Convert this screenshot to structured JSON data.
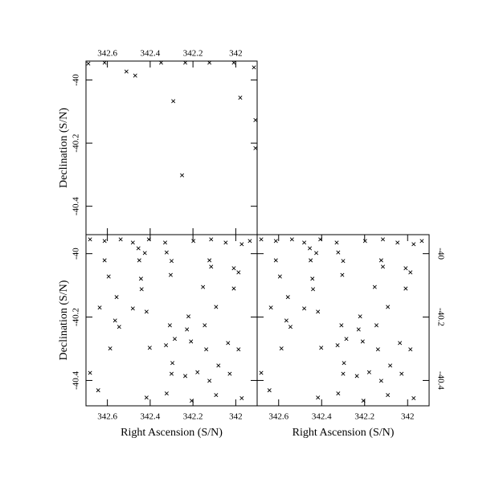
{
  "chart_data": [
    {
      "type": "scatter",
      "marker": "x",
      "color": "#000000",
      "ylabel": "Declination (S/N)",
      "x_tick_side": "top",
      "y_tick_side": "left",
      "xlim": [
        342.7,
        341.9
      ],
      "ylim": [
        -40.49,
        -39.94
      ],
      "xticks": [
        342.6,
        342.4,
        342.2,
        342
      ],
      "yticks": [
        -40.4,
        -40.2,
        -40
      ],
      "x": [
        342.511,
        342.47,
        342.292,
        341.979,
        342.251,
        342.689,
        342.613,
        342.349,
        342.236,
        342.123,
        342.009,
        341.915,
        341.908,
        341.908
      ],
      "y": [
        -39.973,
        -39.986,
        -40.067,
        -40.056,
        -40.302,
        -39.948,
        -39.945,
        -39.945,
        -39.945,
        -39.945,
        -39.945,
        -39.96,
        -40.216,
        -40.127
      ]
    },
    {
      "type": "scatter",
      "marker": "x",
      "color": "#000000",
      "xlabel": "Right Ascension (S/N)",
      "ylabel": "Declination (S/N)",
      "x_tick_side": "bottom",
      "y_tick_side": "left",
      "xlim": [
        342.7,
        341.9
      ],
      "ylim": [
        -40.48,
        -39.94
      ],
      "xticks": [
        342.6,
        342.4,
        342.2,
        342
      ],
      "yticks": [
        -40.4,
        -40.2,
        -40
      ],
      "x": [
        342.681,
        342.613,
        342.538,
        342.481,
        342.455,
        342.406,
        342.33,
        342.198,
        342.115,
        342.047,
        341.972,
        341.934,
        342.613,
        342.451,
        342.425,
        342.323,
        342.3,
        342.123,
        342.115,
        342.009,
        342.594,
        342.443,
        342.304,
        341.987,
        342.44,
        342.153,
        342.009,
        342.557,
        342.636,
        342.481,
        342.092,
        342.417,
        342.221,
        342.564,
        342.545,
        342.145,
        342.308,
        342.228,
        342.285,
        342.209,
        342.036,
        342.326,
        342.138,
        341.987,
        342.587,
        342.402,
        342.296,
        342.081,
        342.3,
        342.179,
        342.028,
        342.681,
        342.643,
        342.323,
        342.417,
        342.206,
        342.092,
        341.972,
        342.236,
        342.123
      ],
      "y": [
        -39.955,
        -39.96,
        -39.955,
        -39.965,
        -39.983,
        -39.955,
        -39.965,
        -39.96,
        -39.955,
        -39.965,
        -39.97,
        -39.96,
        -40.021,
        -40.021,
        -39.998,
        -39.996,
        -40.023,
        -40.021,
        -40.041,
        -40.046,
        -40.072,
        -40.079,
        -40.067,
        -40.059,
        -40.112,
        -40.105,
        -40.11,
        -40.137,
        -40.17,
        -40.173,
        -40.168,
        -40.183,
        -40.198,
        -40.211,
        -40.231,
        -40.226,
        -40.226,
        -40.239,
        -40.269,
        -40.277,
        -40.282,
        -40.289,
        -40.302,
        -40.302,
        -40.299,
        -40.297,
        -40.345,
        -40.353,
        -40.379,
        -40.374,
        -40.379,
        -40.376,
        -40.431,
        -40.441,
        -40.454,
        -40.464,
        -40.446,
        -40.456,
        -40.386,
        -40.401
      ]
    },
    {
      "type": "scatter",
      "marker": "x",
      "color": "#000000",
      "xlabel": "Right Ascension (S/N)",
      "x_tick_side": "bottom",
      "y_tick_side": "right",
      "xlim": [
        342.7,
        341.9
      ],
      "ylim": [
        -40.48,
        -39.94
      ],
      "xticks": [
        342.6,
        342.4,
        342.2,
        342
      ],
      "yticks": [
        -40.4,
        -40.2,
        -40
      ],
      "x": [
        342.681,
        342.613,
        342.538,
        342.481,
        342.455,
        342.406,
        342.33,
        342.198,
        342.115,
        342.047,
        341.972,
        341.934,
        342.613,
        342.451,
        342.425,
        342.323,
        342.3,
        342.123,
        342.115,
        342.009,
        342.594,
        342.443,
        342.304,
        341.987,
        342.44,
        342.153,
        342.009,
        342.557,
        342.636,
        342.481,
        342.092,
        342.417,
        342.221,
        342.564,
        342.545,
        342.145,
        342.308,
        342.228,
        342.285,
        342.209,
        342.036,
        342.326,
        342.138,
        341.987,
        342.587,
        342.402,
        342.296,
        342.081,
        342.3,
        342.179,
        342.028,
        342.681,
        342.643,
        342.323,
        342.417,
        342.206,
        342.092,
        341.972,
        342.236,
        342.123
      ],
      "y": [
        -39.955,
        -39.96,
        -39.955,
        -39.965,
        -39.983,
        -39.955,
        -39.965,
        -39.96,
        -39.955,
        -39.965,
        -39.97,
        -39.96,
        -40.021,
        -40.021,
        -39.998,
        -39.996,
        -40.023,
        -40.021,
        -40.041,
        -40.046,
        -40.072,
        -40.079,
        -40.067,
        -40.059,
        -40.112,
        -40.105,
        -40.11,
        -40.137,
        -40.17,
        -40.173,
        -40.168,
        -40.183,
        -40.198,
        -40.211,
        -40.231,
        -40.226,
        -40.226,
        -40.239,
        -40.269,
        -40.277,
        -40.282,
        -40.289,
        -40.302,
        -40.302,
        -40.299,
        -40.297,
        -40.345,
        -40.353,
        -40.379,
        -40.374,
        -40.379,
        -40.376,
        -40.431,
        -40.441,
        -40.454,
        -40.464,
        -40.446,
        -40.456,
        -40.386,
        -40.401
      ]
    }
  ]
}
